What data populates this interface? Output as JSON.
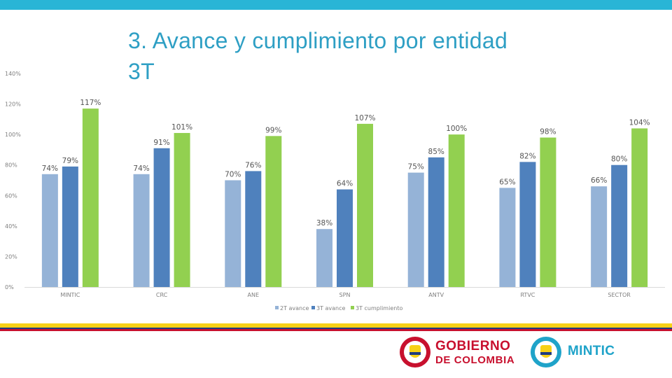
{
  "title": "3. Avance y cumplimiento por entidad 3T",
  "chart_data": {
    "type": "bar",
    "title": "3. Avance y cumplimiento por entidad 3T",
    "categories": [
      "MINTIC",
      "CRC",
      "ANE",
      "SPN",
      "ANTV",
      "RTVC",
      "SECTOR"
    ],
    "series": [
      {
        "name": "2T avance",
        "color": "#95b3d7",
        "values": [
          74,
          74,
          70,
          38,
          75,
          65,
          66
        ],
        "labels": [
          "74%",
          "74%",
          "70%",
          "38%",
          "75%",
          "65%",
          "66%"
        ]
      },
      {
        "name": "3T avance",
        "color": "#4f81bd",
        "values": [
          79,
          91,
          76,
          64,
          85,
          82,
          80
        ],
        "labels": [
          "79%",
          "91%",
          "76%",
          "64%",
          "85%",
          "82%",
          "80%"
        ]
      },
      {
        "name": "3T cumplimiento",
        "color": "#92d050",
        "values": [
          117,
          101,
          99,
          107,
          100,
          98,
          104
        ],
        "labels": [
          "117%",
          "101%",
          "99%",
          "107%",
          "100%",
          "98%",
          "104%"
        ]
      }
    ],
    "yticks": [
      "0%",
      "20%",
      "40%",
      "60%",
      "80%",
      "100%",
      "120%",
      "140%"
    ],
    "ylim": [
      0,
      140
    ],
    "xlabel": "",
    "ylabel": "",
    "legend_position": "bottom"
  },
  "footer": {
    "gov_line1": "GOBIERNO",
    "gov_line2": "DE COLOMBIA",
    "mintic": "MINTIC"
  },
  "colors": {
    "topbar": "#29b5d6",
    "title": "#2e9fc4",
    "stripe_yellow": "#f7d117",
    "stripe_blue": "#1f3b80",
    "stripe_red": "#c8102e"
  }
}
